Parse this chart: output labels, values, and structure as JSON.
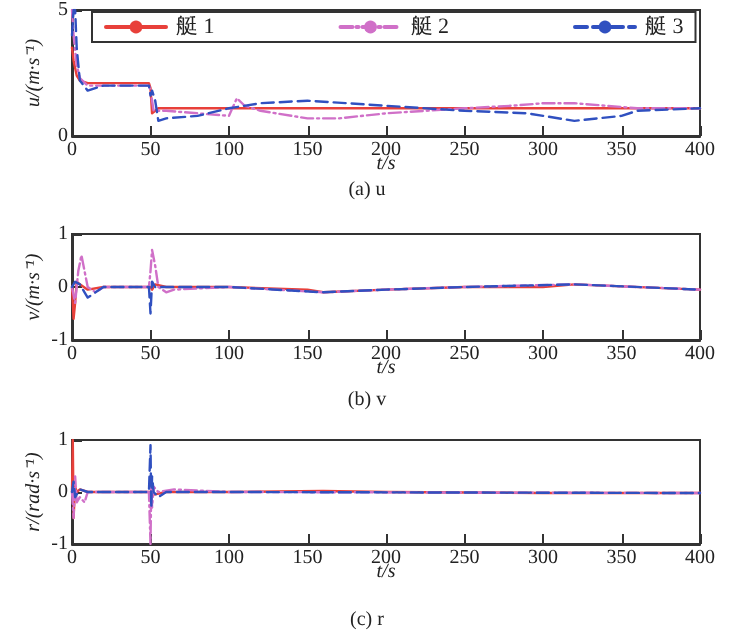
{
  "chart_data": [
    {
      "type": "line",
      "title": "(a) u",
      "xlabel": "t/s",
      "ylabel": "u/(m·s⁻¹)",
      "xlim": [
        0,
        400
      ],
      "xticks": [
        0,
        50,
        100,
        150,
        200,
        250,
        300,
        350,
        400
      ],
      "ylim": [
        0,
        5
      ],
      "yticks": [
        0,
        5
      ],
      "grid": false,
      "legend": "top",
      "marker": "none",
      "series": [
        {
          "name": "艇 1",
          "color": "#e8403a",
          "line_style": "solid",
          "x": [
            0,
            1,
            3,
            5,
            10,
            20,
            30,
            40,
            49,
            50,
            51,
            53,
            55,
            60,
            80,
            100,
            150,
            200,
            250,
            300,
            350,
            400
          ],
          "values": [
            3.5,
            3.0,
            2.4,
            2.2,
            2.1,
            2.1,
            2.1,
            2.1,
            2.1,
            1.9,
            0.9,
            1.0,
            1.1,
            1.1,
            1.1,
            1.1,
            1.1,
            1.1,
            1.1,
            1.1,
            1.1,
            1.1
          ]
        },
        {
          "name": "艇 2",
          "color": "#d070c8",
          "line_style": "dashdot",
          "x": [
            0,
            1,
            3,
            5,
            10,
            20,
            40,
            49,
            50,
            52,
            55,
            60,
            80,
            100,
            105,
            110,
            120,
            150,
            170,
            200,
            250,
            280,
            300,
            320,
            340,
            360,
            400
          ],
          "values": [
            5,
            4,
            2.8,
            2.3,
            2.0,
            2.0,
            2.0,
            2.0,
            1.8,
            1.0,
            1.0,
            1.0,
            0.9,
            0.8,
            1.5,
            1.2,
            1.0,
            0.7,
            0.7,
            0.9,
            1.1,
            1.2,
            1.3,
            1.3,
            1.2,
            1.1,
            1.1
          ]
        },
        {
          "name": "艇 3",
          "color": "#3050c0",
          "line_style": "dashed",
          "x": [
            0,
            1,
            2,
            3,
            5,
            10,
            20,
            40,
            49,
            50,
            51,
            53,
            55,
            60,
            80,
            100,
            120,
            150,
            175,
            200,
            250,
            290,
            320,
            350,
            360,
            400
          ],
          "values": [
            4,
            5,
            5,
            3.5,
            2.2,
            1.8,
            2.0,
            2.0,
            2.0,
            1.6,
            1.8,
            1.4,
            0.6,
            0.7,
            0.8,
            1.1,
            1.3,
            1.4,
            1.3,
            1.2,
            1.0,
            0.9,
            0.6,
            0.8,
            1.0,
            1.1
          ]
        }
      ]
    },
    {
      "type": "line",
      "title": "(b) v",
      "xlabel": "t/s",
      "ylabel": "v/(m·s⁻¹)",
      "xlim": [
        0,
        400
      ],
      "xticks": [
        0,
        50,
        100,
        150,
        200,
        250,
        300,
        350,
        400
      ],
      "ylim": [
        -1,
        1
      ],
      "yticks": [
        -1,
        0,
        1
      ],
      "grid": false,
      "marker": "none",
      "series": [
        {
          "color": "#e8403a",
          "line_style": "solid",
          "x": [
            0,
            1,
            2,
            3,
            5,
            10,
            20,
            40,
            50,
            51,
            53,
            60,
            100,
            150,
            160,
            200,
            250,
            300,
            320,
            400
          ],
          "values": [
            0,
            -0.6,
            -0.3,
            0.1,
            0.05,
            -0.05,
            0,
            0,
            0,
            -0.05,
            0.05,
            0,
            0,
            -0.05,
            -0.1,
            -0.05,
            0,
            0,
            0.05,
            -0.05
          ]
        },
        {
          "color": "#d070c8",
          "line_style": "dashdot",
          "x": [
            0,
            2,
            4,
            6,
            8,
            10,
            15,
            20,
            49,
            50,
            51,
            53,
            55,
            60,
            65,
            100,
            160,
            200,
            250,
            320,
            400
          ],
          "values": [
            0,
            -0.3,
            0.3,
            0.6,
            0.3,
            0,
            -0.1,
            0,
            0,
            0.3,
            0.7,
            0.4,
            0,
            -0.1,
            -0.05,
            0,
            -0.1,
            -0.05,
            0,
            0.05,
            -0.05
          ]
        },
        {
          "color": "#3050c0",
          "line_style": "dashed",
          "x": [
            0,
            2,
            5,
            8,
            10,
            15,
            20,
            49,
            50,
            51,
            53,
            60,
            100,
            160,
            200,
            250,
            320,
            400
          ],
          "values": [
            0,
            0.1,
            0.05,
            -0.1,
            -0.2,
            -0.1,
            0,
            0,
            -0.5,
            0.1,
            0,
            0,
            0,
            -0.1,
            -0.05,
            0,
            0.05,
            -0.05
          ]
        }
      ]
    },
    {
      "type": "line",
      "title": "(c) r",
      "xlabel": "t/s",
      "ylabel": "r/(rad·s⁻¹)",
      "xlim": [
        0,
        400
      ],
      "xticks": [
        0,
        50,
        100,
        150,
        200,
        250,
        300,
        350,
        400
      ],
      "ylim": [
        -1,
        1
      ],
      "yticks": [
        -1,
        0,
        1
      ],
      "grid": false,
      "marker": "none",
      "series": [
        {
          "color": "#e8403a",
          "line_style": "solid",
          "x": [
            0,
            0.5,
            1,
            2,
            3,
            5,
            10,
            50,
            51,
            52,
            60,
            100,
            160,
            200,
            300,
            400
          ],
          "values": [
            0,
            1,
            -0.5,
            0.1,
            0,
            0.05,
            0,
            0,
            0.05,
            -0.05,
            0,
            0,
            0.02,
            0,
            -0.02,
            -0.02
          ]
        },
        {
          "color": "#d070c8",
          "line_style": "dashdot",
          "x": [
            0,
            1,
            2,
            3,
            5,
            8,
            10,
            49,
            50,
            50.5,
            51,
            52,
            55,
            65,
            100,
            400
          ],
          "values": [
            0,
            -0.5,
            0.3,
            -0.2,
            -0.1,
            -0.2,
            0,
            0,
            -1,
            0.2,
            -0.3,
            0.1,
            0,
            0.05,
            0,
            -0.02
          ]
        },
        {
          "color": "#3050c0",
          "line_style": "dashed",
          "x": [
            0,
            1,
            2,
            5,
            10,
            49,
            50,
            50.5,
            51,
            52,
            55,
            60,
            100,
            400
          ],
          "values": [
            0,
            0.2,
            -0.1,
            0.05,
            0,
            0,
            0.9,
            -0.3,
            0.3,
            0,
            -0.1,
            0,
            0,
            -0.02
          ]
        }
      ]
    }
  ]
}
